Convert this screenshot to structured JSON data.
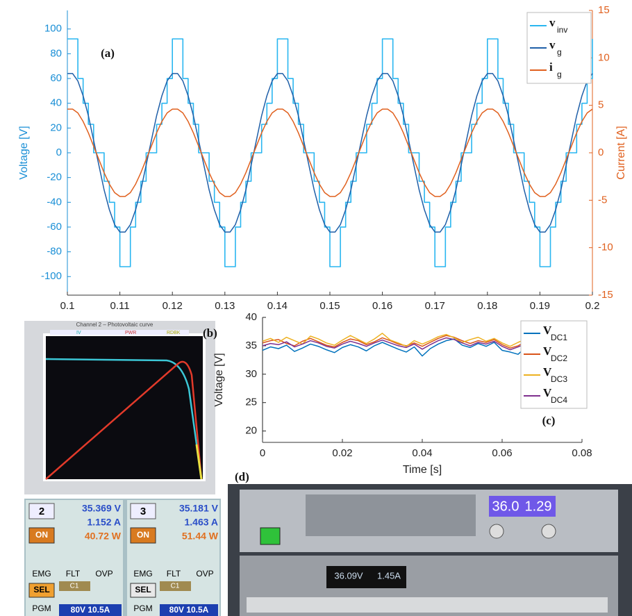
{
  "chart_data": [
    {
      "type": "line",
      "annotation": "(a)",
      "ylabel": "Voltage [V]",
      "y2label": "Current [A]",
      "y_color": "#1a8fd6",
      "y2_color": "#e0601e",
      "xlim": [
        0.1,
        0.2
      ],
      "xticks": [
        0.1,
        0.11,
        0.12,
        0.13,
        0.14,
        0.15,
        0.16,
        0.17,
        0.18,
        0.19,
        0.2
      ],
      "ylim": [
        -115,
        115
      ],
      "yticks": [
        -100,
        -80,
        -60,
        -40,
        -20,
        0,
        20,
        40,
        60,
        80,
        100
      ],
      "y2lim": [
        -15,
        15
      ],
      "y2ticks": [
        -15,
        -10,
        -5,
        0,
        5,
        10,
        15
      ],
      "legend": "upper right",
      "x": [
        0.1,
        0.101,
        0.102,
        0.103,
        0.104,
        0.105,
        0.106,
        0.107,
        0.108,
        0.109,
        0.11,
        0.111,
        0.112,
        0.113,
        0.114,
        0.115,
        0.116,
        0.117,
        0.118,
        0.119,
        0.12,
        0.121,
        0.122,
        0.123,
        0.124,
        0.125,
        0.126,
        0.127,
        0.128,
        0.129,
        0.13,
        0.131,
        0.132,
        0.133,
        0.134,
        0.135,
        0.136,
        0.137,
        0.138,
        0.139,
        0.14,
        0.141,
        0.142,
        0.143,
        0.144,
        0.145,
        0.146,
        0.147,
        0.148,
        0.149,
        0.15,
        0.151,
        0.152,
        0.153,
        0.154,
        0.155,
        0.156,
        0.157,
        0.158,
        0.159,
        0.16,
        0.161,
        0.162,
        0.163,
        0.164,
        0.165,
        0.166,
        0.167,
        0.168,
        0.169,
        0.17,
        0.171,
        0.172,
        0.173,
        0.174,
        0.175,
        0.176,
        0.177,
        0.178,
        0.179,
        0.18,
        0.181,
        0.182,
        0.183,
        0.184,
        0.185,
        0.186,
        0.187,
        0.188,
        0.189,
        0.19,
        0.191,
        0.192,
        0.193,
        0.194,
        0.195,
        0.196,
        0.197,
        0.198,
        0.199,
        0.2
      ],
      "series": [
        {
          "name": "v",
          "name_sub": "inv",
          "color": "#29b6f0",
          "step": true,
          "values": [
            92,
            92,
            60,
            40,
            23,
            0,
            0,
            -23,
            -40,
            -60,
            -92,
            -92,
            -60,
            -40,
            -23,
            0,
            0,
            23,
            40,
            60,
            92,
            92,
            60,
            40,
            23,
            0,
            0,
            -23,
            -40,
            -60,
            -92,
            -92,
            -60,
            -40,
            -23,
            0,
            0,
            23,
            40,
            60,
            92,
            92,
            60,
            40,
            23,
            0,
            0,
            -23,
            -40,
            -60,
            -92,
            -92,
            -60,
            -40,
            -23,
            0,
            0,
            23,
            40,
            60,
            92,
            92,
            60,
            40,
            23,
            0,
            0,
            -23,
            -40,
            -60,
            -92,
            -92,
            -60,
            -40,
            -23,
            0,
            0,
            23,
            40,
            60,
            92,
            92,
            60,
            40,
            23,
            0,
            0,
            -23,
            -40,
            -60,
            -92,
            -92,
            -60,
            -40,
            -23,
            0,
            0,
            23,
            40,
            60,
            92
          ]
        },
        {
          "name": "v",
          "name_sub": "g",
          "color": "#1f5fa8",
          "values": [
            64,
            64,
            58,
            46,
            30,
            10,
            -10,
            -30,
            -46,
            -58,
            -64,
            -64,
            -58,
            -46,
            -30,
            -10,
            10,
            30,
            46,
            58,
            64,
            64,
            58,
            46,
            30,
            10,
            -10,
            -30,
            -46,
            -58,
            -64,
            -64,
            -58,
            -46,
            -30,
            -10,
            10,
            30,
            46,
            58,
            64,
            64,
            58,
            46,
            30,
            10,
            -10,
            -30,
            -46,
            -58,
            -64,
            -64,
            -58,
            -46,
            -30,
            -10,
            10,
            30,
            46,
            58,
            64,
            64,
            58,
            46,
            30,
            10,
            -10,
            -30,
            -46,
            -58,
            -64,
            -64,
            -58,
            -46,
            -30,
            -10,
            10,
            30,
            46,
            58,
            64,
            64,
            58,
            46,
            30,
            10,
            -10,
            -30,
            -46,
            -58,
            -64,
            -64,
            -58,
            -46,
            -30,
            -10,
            10,
            30,
            46,
            58,
            64
          ]
        },
        {
          "name": "i",
          "name_sub": "g",
          "color": "#e0601e",
          "axis": "y2",
          "values": [
            4.6,
            4.6,
            4.2,
            3.3,
            2.1,
            0.7,
            -0.7,
            -2.1,
            -3.3,
            -4.2,
            -4.6,
            -4.6,
            -4.2,
            -3.3,
            -2.1,
            -0.7,
            0.7,
            2.1,
            3.3,
            4.2,
            4.6,
            4.6,
            4.2,
            3.3,
            2.1,
            0.7,
            -0.7,
            -2.1,
            -3.3,
            -4.2,
            -4.6,
            -4.6,
            -4.2,
            -3.3,
            -2.1,
            -0.7,
            0.7,
            2.1,
            3.3,
            4.2,
            4.6,
            4.6,
            4.2,
            3.3,
            2.1,
            0.7,
            -0.7,
            -2.1,
            -3.3,
            -4.2,
            -4.6,
            -4.6,
            -4.2,
            -3.3,
            -2.1,
            -0.7,
            0.7,
            2.1,
            3.3,
            4.2,
            4.6,
            4.6,
            4.2,
            3.3,
            2.1,
            0.7,
            -0.7,
            -2.1,
            -3.3,
            -4.2,
            -4.6,
            -4.6,
            -4.2,
            -3.3,
            -2.1,
            -0.7,
            0.7,
            2.1,
            3.3,
            4.2,
            4.6,
            4.6,
            4.2,
            3.3,
            2.1,
            0.7,
            -0.7,
            -2.1,
            -3.3,
            -4.2,
            -4.6,
            -4.6,
            -4.2,
            -3.3,
            -2.1,
            -0.7,
            0.7,
            2.1,
            3.3,
            4.2,
            4.6
          ]
        }
      ]
    },
    {
      "type": "line",
      "annotation": "(c)",
      "xlabel": "Time [s]",
      "ylabel": "Voltage [V]",
      "y_color": "#222222",
      "xlim": [
        0,
        0.08
      ],
      "xticks": [
        0,
        0.02,
        0.04,
        0.06,
        0.08
      ],
      "ylim": [
        18,
        40
      ],
      "yticks": [
        20,
        25,
        30,
        35,
        40
      ],
      "legend": "upper right",
      "x": [
        0,
        0.002,
        0.004,
        0.006,
        0.008,
        0.01,
        0.012,
        0.014,
        0.016,
        0.018,
        0.02,
        0.022,
        0.024,
        0.026,
        0.028,
        0.03,
        0.032,
        0.034,
        0.036,
        0.038,
        0.04,
        0.042,
        0.044,
        0.046,
        0.048,
        0.05,
        0.052,
        0.054,
        0.056,
        0.058,
        0.06,
        0.062,
        0.064,
        0.066
      ],
      "series": [
        {
          "name": "V",
          "name_sub": "DC1",
          "color": "#0072bd",
          "values": [
            34.2,
            34.8,
            34.5,
            35.1,
            34.0,
            34.6,
            35.3,
            34.9,
            34.3,
            33.8,
            34.7,
            35.2,
            34.8,
            34.1,
            35.0,
            35.6,
            35.0,
            34.4,
            33.9,
            34.8,
            33.2,
            34.5,
            35.3,
            35.9,
            36.2,
            35.1,
            34.7,
            35.4,
            34.9,
            35.6,
            34.2,
            33.9,
            33.5,
            34.8
          ]
        },
        {
          "name": "V",
          "name_sub": "DC2",
          "color": "#d95319",
          "values": [
            35.5,
            35.9,
            36.1,
            35.4,
            35.0,
            35.8,
            36.3,
            35.7,
            35.1,
            34.8,
            35.6,
            36.2,
            35.9,
            35.2,
            35.7,
            36.4,
            35.9,
            35.3,
            35.0,
            35.5,
            34.9,
            35.6,
            36.3,
            36.8,
            36.5,
            35.9,
            35.4,
            35.9,
            35.6,
            36.1,
            35.2,
            34.6,
            35.0,
            35.8
          ]
        },
        {
          "name": "V",
          "name_sub": "DC3",
          "color": "#edb120",
          "values": [
            35.8,
            36.3,
            35.6,
            36.5,
            35.9,
            35.3,
            36.7,
            36.2,
            35.5,
            35.1,
            36.0,
            36.8,
            36.1,
            35.4,
            36.2,
            37.2,
            36.0,
            35.5,
            34.9,
            35.9,
            35.3,
            35.9,
            36.6,
            37.0,
            36.4,
            35.6,
            36.1,
            36.5,
            35.8,
            36.3,
            35.5,
            34.9,
            35.6,
            36.2
          ]
        },
        {
          "name": "V",
          "name_sub": "DC4",
          "color": "#7e2f8e",
          "values": [
            35.0,
            35.4,
            35.2,
            35.7,
            34.8,
            35.3,
            35.9,
            35.5,
            34.9,
            34.6,
            35.3,
            35.8,
            35.4,
            34.9,
            35.5,
            36.0,
            35.5,
            35.0,
            34.7,
            35.3,
            34.4,
            35.2,
            35.9,
            36.4,
            36.1,
            35.5,
            35.0,
            35.6,
            35.3,
            35.8,
            34.9,
            34.3,
            34.8,
            35.4
          ]
        }
      ]
    }
  ],
  "photos": {
    "b": {
      "label": "(b)",
      "screen_title": "Channel 2 – Photovoltaic curve",
      "legend": [
        "IV",
        "PWR",
        "RDBK"
      ],
      "panels": [
        {
          "channel": "2",
          "voltage": "35.369 V",
          "current": "1.152 A",
          "power": "40.72 W",
          "on": "ON",
          "emg": "EMG",
          "flt": "FLT",
          "ovp": "OVP",
          "sel": "SEL",
          "mode": "C1",
          "pgm": "PGM",
          "rating": "80V 10.5A"
        },
        {
          "channel": "3",
          "voltage": "35.181 V",
          "current": "1.463 A",
          "power": "51.44 W",
          "on": "ON",
          "emg": "EMG",
          "flt": "FLT",
          "ovp": "OVP",
          "sel": "SEL",
          "mode": "C1",
          "pgm": "PGM",
          "rating": "80V 10.5A"
        }
      ]
    },
    "d": {
      "label": "(d)",
      "upper_voltage": "36.0",
      "upper_current": "1.29",
      "lower_voltage": "36.09V",
      "lower_current": "1.45A"
    }
  }
}
